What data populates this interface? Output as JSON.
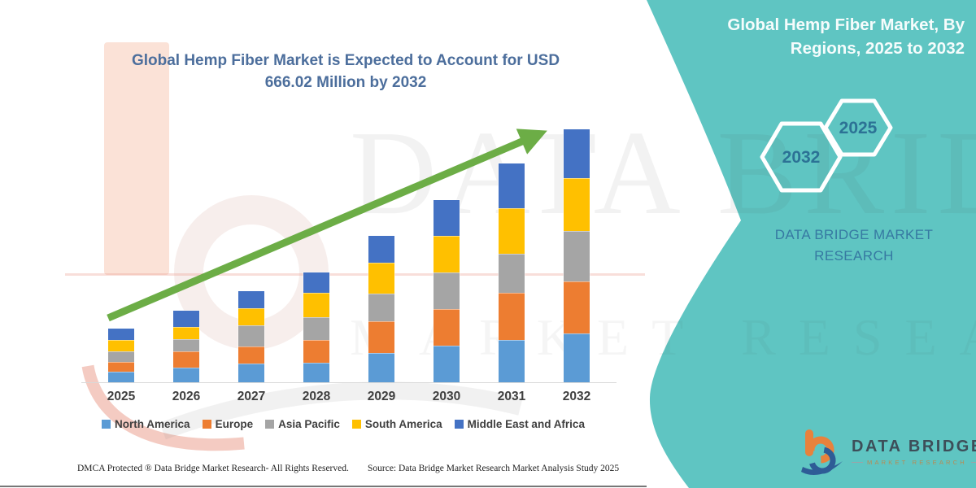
{
  "left_panel": {
    "title_line1": "Global Hemp Fiber Market is Expected to Account for USD",
    "title_line2": "666.02 Million by 2032",
    "footer_dmca": "DMCA Protected ® Data Bridge Market Research-  All Rights Reserved.",
    "footer_source": "Source: Data Bridge Market Research  Market Analysis Study 2025"
  },
  "right_panel": {
    "heading_line1": "Global Hemp Fiber Market, By",
    "heading_line2": "Regions, 2025 to 2032",
    "hexagon_back_label": "2032",
    "hexagon_front_label": "2025",
    "brand_line1": "DATA BRIDGE MARKET",
    "brand_line2": "RESEARCH",
    "logo_title": "DATA BRIDGE",
    "logo_subtitle": "MARKET RESEARCH",
    "panel_color": "#5FC5C2",
    "accent_text_color": "#2C7295"
  },
  "watermark": {
    "line1": "DATA BRIDGE",
    "line2": "MARKET RESEARCH"
  },
  "chart_data": {
    "type": "bar",
    "stacked": true,
    "title": "Global Hemp Fiber Market is Expected to Account for USD 666.02 Million by 2032",
    "labeled_value_musd": 666.02,
    "units": "USD Million (segment values estimated from bar heights; only the 2032 total of 666.02 is labeled on the image)",
    "categories": [
      "2025",
      "2026",
      "2027",
      "2028",
      "2029",
      "2030",
      "2031",
      "2032"
    ],
    "series": [
      {
        "name": "North America",
        "color": "#5B9BD5",
        "values": [
          28,
          39,
          50,
          52,
          78,
          97,
          112,
          129
        ]
      },
      {
        "name": "Europe",
        "color": "#ED7D31",
        "values": [
          26,
          43,
          45,
          60,
          82,
          95,
          123,
          136
        ]
      },
      {
        "name": "Asia Pacific",
        "color": "#A5A5A5",
        "values": [
          28,
          32,
          54,
          60,
          73,
          97,
          103,
          134
        ]
      },
      {
        "name": "South America",
        "color": "#FFC000",
        "values": [
          30,
          32,
          45,
          63,
          82,
          97,
          121,
          138
        ]
      },
      {
        "name": "Middle East and Africa",
        "color": "#4472C4",
        "values": [
          30,
          43,
          45,
          54,
          71,
          93,
          116,
          129
        ]
      }
    ],
    "totals": [
      142,
      189,
      239,
      289,
      386,
      479,
      575,
      666
    ],
    "legend_position": "bottom",
    "y_axis": {
      "visible": false
    },
    "x_axis": {
      "baseline_visible": true
    },
    "trend_arrow": {
      "present": true,
      "color": "#6CAD46"
    }
  }
}
